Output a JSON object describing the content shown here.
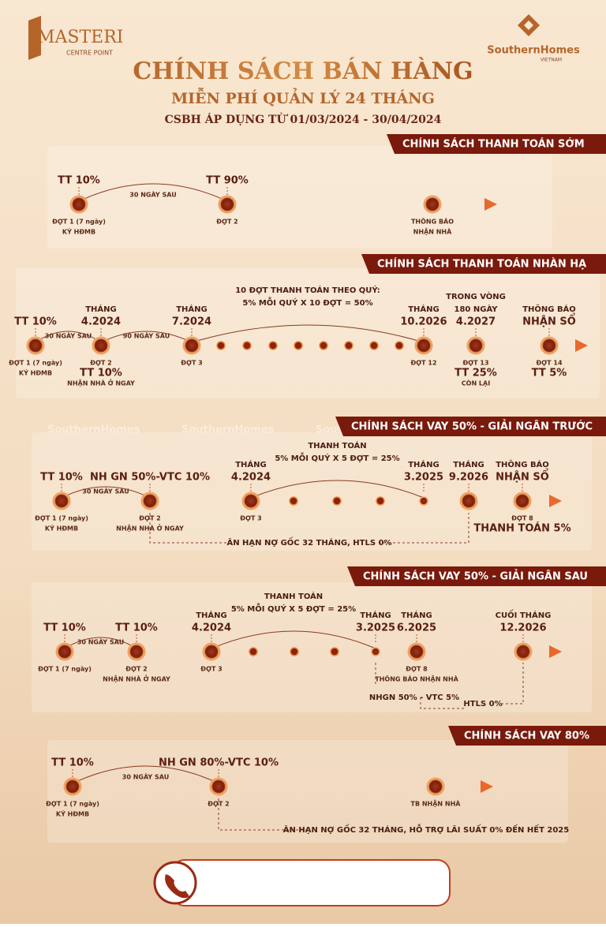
{
  "header": {
    "brand_left": "MASTERI",
    "brand_left_sub": "CENTRE POINT",
    "brand_right": "SouthernHomes",
    "brand_right_sub": "VIETNAM",
    "title": "CHÍNH SÁCH BÁN HÀNG",
    "subtitle": "MIỄN PHÍ QUẢN LÝ 24 THÁNG",
    "date": "CSBH ÁP DỤNG TỪ 01/03/2024 - 30/04/2024"
  },
  "watermark": "SouthernHomes",
  "sections": [
    {
      "title": "CHÍNH SÁCH THANH TOÁN SỚM",
      "points": [
        {
          "top": [
            "TT 10%"
          ],
          "bottom": [
            "ĐỢT 1 (7 ngày)",
            "KÝ HĐMB"
          ]
        },
        {
          "top": [
            "TT 90%"
          ],
          "bottom": [
            "ĐỢT 2"
          ]
        },
        {
          "top": [],
          "bottom": [
            "THÔNG BÁO",
            "NHẬN NHÀ"
          ]
        }
      ],
      "spans": [
        [
          "30 NGÀY SAU"
        ]
      ],
      "notes": []
    },
    {
      "title": "CHÍNH SÁCH THANH TOÁN NHÀN HẠ",
      "points": [
        {
          "top": [
            "TT 10%"
          ],
          "bottom": [
            "ĐỢT 1 (7 ngày)",
            "KÝ HĐMB"
          ]
        },
        {
          "top": [
            "THÁNG",
            "4.2024"
          ],
          "bottom": [
            "ĐỢT 2",
            "TT 10%",
            "NHẬN NHÀ Ở NGAY"
          ]
        },
        {
          "top": [
            "THÁNG",
            "7.2024"
          ],
          "bottom": [
            "ĐỢT 3"
          ]
        },
        {
          "top": [
            "THÁNG",
            "10.2026"
          ],
          "bottom": [
            "ĐỢT 12"
          ]
        },
        {
          "top": [
            "TRONG VÒNG",
            "180 NGÀY",
            "4.2027"
          ],
          "bottom": [
            "ĐỢT 13",
            "TT 25%",
            "CÒN LẠI"
          ]
        },
        {
          "top": [
            "THÔNG BÁO",
            "NHẬN SỔ"
          ],
          "bottom": [
            "ĐỢT 14",
            "TT 5%"
          ]
        }
      ],
      "spans": [
        [
          "30 NGÀY SAU"
        ],
        [
          "90 NGÀY SAU"
        ],
        [
          "10 ĐỢT THANH TOÁN THEO QUÝ:",
          "5% MỖI QUÝ X 10 ĐỢT = 50%"
        ]
      ],
      "notes": []
    },
    {
      "title": "CHÍNH SÁCH VAY 50% - GIẢI NGÂN TRƯỚC",
      "points": [
        {
          "top": [
            "TT 10%"
          ],
          "bottom": [
            "ĐỢT 1 (7 ngày)",
            "KÝ HĐMB"
          ]
        },
        {
          "top": [
            "NH GN 50%-VTC 10%"
          ],
          "bottom": [
            "ĐỢT 2",
            "NHẬN NHÀ Ở NGAY"
          ]
        },
        {
          "top": [
            "THÁNG",
            "4.2024"
          ],
          "bottom": [
            "ĐỢT 3"
          ]
        },
        {
          "top": [
            "THÁNG",
            "3.2025"
          ],
          "bottom": []
        },
        {
          "top": [
            "THÁNG",
            "9.2026"
          ],
          "bottom": []
        },
        {
          "top": [
            "THÔNG BÁO",
            "NHẬN SỔ"
          ],
          "bottom": [
            "ĐỢT 8",
            "THANH TOÁN 5%"
          ]
        }
      ],
      "spans": [
        [
          "30 NGÀY SAU"
        ],
        [
          "THANH TOÁN",
          "5% MỖI QUÝ X 5 ĐỢT = 25%"
        ]
      ],
      "notes": [
        "ÂN HẠN NỢ GỐC 32 THÁNG, HTLS 0%"
      ]
    },
    {
      "title": "CHÍNH SÁCH VAY 50% - GIẢI NGÂN SAU",
      "points": [
        {
          "top": [
            "TT 10%"
          ],
          "bottom": [
            "ĐỢT 1 (7 ngày)"
          ]
        },
        {
          "top": [
            "TT 10%"
          ],
          "bottom": [
            "ĐỢT 2",
            "NHẬN NHÀ Ở NGAY"
          ]
        },
        {
          "top": [
            "THÁNG",
            "4.2024"
          ],
          "bottom": [
            "ĐỢT 3"
          ]
        },
        {
          "top": [
            "THÁNG",
            "3.2025"
          ],
          "bottom": []
        },
        {
          "top": [
            "THÁNG",
            "6.2025"
          ],
          "bottom": [
            "ĐỢT 8",
            "THÔNG BÁO NHẬN NHÀ"
          ]
        },
        {
          "top": [
            "CUỐI THÁNG",
            "12.2026"
          ],
          "bottom": []
        }
      ],
      "spans": [
        [
          "30 NGÀY SAU"
        ],
        [
          "THANH TOÁN",
          "5% MỖI QUÝ X 5 ĐỢT = 25%"
        ]
      ],
      "notes": [
        "NHGN 50% - VTC 5%",
        "HTLS 0%"
      ]
    },
    {
      "title": "CHÍNH SÁCH VAY 80%",
      "points": [
        {
          "top": [
            "TT 10%"
          ],
          "bottom": [
            "ĐỢT 1 (7 ngày)",
            "KÝ HĐMB"
          ]
        },
        {
          "top": [
            "NH GN 80%-VTC 10%"
          ],
          "bottom": [
            "ĐỢT 2"
          ]
        },
        {
          "top": [],
          "bottom": [
            "TB NHẬN NHÀ"
          ]
        }
      ],
      "spans": [
        [
          "30 NGÀY SAU"
        ]
      ],
      "notes": [
        "ÂN HẠN NỢ GỐC 32 THÁNG, HỖ TRỢ LÃI SUẤT 0% ĐẾN HẾT 2025"
      ]
    }
  ]
}
